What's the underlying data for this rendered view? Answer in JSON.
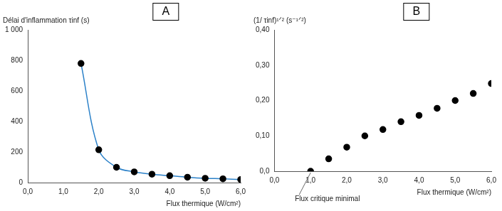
{
  "chart_data": [
    {
      "type": "line",
      "title": "A",
      "y_label": "Délai d'inflammation τinf (s)",
      "x_label": "Flux thermique (W/cm²)",
      "x": [
        1.5,
        2.0,
        2.5,
        3.0,
        3.5,
        4.0,
        4.5,
        5.0,
        5.5,
        6.0
      ],
      "values": [
        780,
        215,
        100,
        70,
        55,
        45,
        35,
        28,
        25,
        20
      ],
      "color": "#2a80c8",
      "marker": "circle",
      "line_style": "solid",
      "xlim": [
        0,
        6
      ],
      "ylim": [
        0,
        1000
      ],
      "xticks": [
        {
          "value": 0,
          "label": "0,0"
        },
        {
          "value": 1,
          "label": "1,0"
        },
        {
          "value": 2,
          "label": "2,0"
        },
        {
          "value": 3,
          "label": "3,0"
        },
        {
          "value": 4,
          "label": "4,0"
        },
        {
          "value": 5,
          "label": "5,0"
        },
        {
          "value": 6,
          "label": "6,0"
        }
      ],
      "yticks": [
        0,
        200,
        400,
        600,
        800,
        {
          "value": 1000,
          "label": "1 000"
        }
      ],
      "grid": false
    },
    {
      "type": "scatter",
      "title": "B",
      "y_label": "(1/ τinf)¹ᐟ² (s⁻¹ᐟ²)",
      "x_label": "Flux thermique (W/cm²)",
      "x": [
        1.0,
        1.5,
        2.0,
        2.5,
        3.0,
        3.5,
        4.0,
        4.5,
        5.0,
        5.5,
        6.0
      ],
      "values": [
        0,
        0.035,
        0.068,
        0.1,
        0.118,
        0.14,
        0.158,
        0.178,
        0.2,
        0.22,
        0.248
      ],
      "color": "#000000",
      "marker": "circle",
      "xlim": [
        0,
        6
      ],
      "ylim": [
        0,
        0.4
      ],
      "xticks": [
        {
          "value": 0,
          "label": "0,0"
        },
        {
          "value": 1,
          "label": "1,0"
        },
        {
          "value": 2,
          "label": "2,0"
        },
        {
          "value": 3,
          "label": "3,0"
        },
        {
          "value": 4,
          "label": "4,0"
        },
        {
          "value": 5,
          "label": "5,0"
        },
        {
          "value": 6,
          "label": "6,0"
        }
      ],
      "yticks": [
        {
          "value": 0,
          "label": "0,0"
        },
        {
          "value": 0.1,
          "label": "0,10"
        },
        {
          "value": 0.2,
          "label": "0,20"
        },
        {
          "value": 0.3,
          "label": "0,30"
        },
        {
          "value": 0.4,
          "label": "0,40"
        }
      ],
      "annotations": [
        {
          "text": "Flux critique minimal",
          "x": 1.0,
          "y": 0
        }
      ],
      "grid": false
    }
  ]
}
